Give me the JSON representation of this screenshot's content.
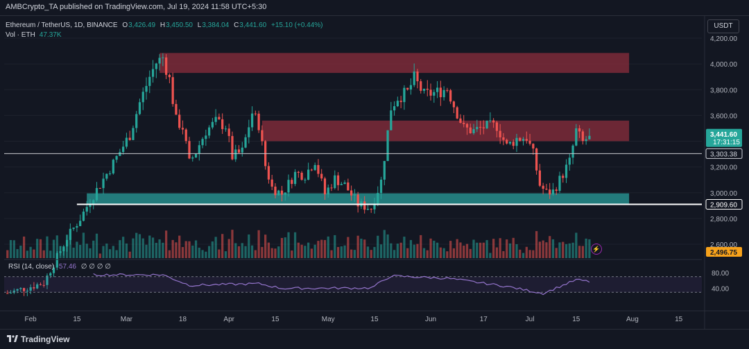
{
  "header": {
    "published": "AMBCrypto_TA published on TradingView.com, Jul 19, 2024 11:58 UTC+5:30"
  },
  "legend": {
    "symbol": "Ethereum / TetherUS, 1D, BINANCE",
    "open_label": "O",
    "open": "3,426.49",
    "high_label": "H",
    "high": "3,450.50",
    "low_label": "L",
    "low": "3,384.04",
    "close_label": "C",
    "close": "3,441.60",
    "change": "+15.10 (+0.44%)",
    "volume_label": "Vol · ETH",
    "volume": "47.37K"
  },
  "currency": "USDT",
  "price_axis": {
    "ticks": [
      "4,200.00",
      "4,000.00",
      "3,800.00",
      "3,600.00",
      "3,200.00",
      "3,000.00",
      "2,800.00",
      "2,600.00"
    ],
    "current_price": "3,441.60",
    "countdown": "17:31:15",
    "line_label_1": "3,303.38",
    "line_label_2": "2,909.60",
    "volume_label": "2,496.75"
  },
  "rsi": {
    "label": "RSI (14, close)",
    "value": "57.46",
    "zeros": "∅ ∅ ∅ ∅",
    "ticks": [
      "80.00",
      "40.00"
    ]
  },
  "time_axis": {
    "labels": [
      "Feb",
      "15",
      "Mar",
      "18",
      "Apr",
      "15",
      "May",
      "15",
      "Jun",
      "17",
      "Jul",
      "15",
      "Aug",
      "15"
    ]
  },
  "footer": {
    "brand": "TradingView"
  },
  "colors": {
    "background": "#131722",
    "up": "#26a69a",
    "down": "#ef5350",
    "resistance_zone": "#8b2e3c",
    "support_zone": "#2a9d9b",
    "rsi_line": "#9575cd"
  },
  "chart_data": {
    "type": "candlestick",
    "symbol": "Ethereum / TetherUS",
    "interval": "1D",
    "ylim": [
      2450,
      4300
    ],
    "x_range": [
      "2024-01-24",
      "2024-08-22"
    ],
    "horizontal_lines": [
      3303.38,
      2909.6
    ],
    "zones": [
      {
        "color": "resistance",
        "from": 3930,
        "to": 4085,
        "x_start": "2024-03-11",
        "x_end": "2024-07-31"
      },
      {
        "color": "resistance",
        "from": 3400,
        "to": 3560,
        "x_start": "2024-04-11",
        "x_end": "2024-07-31"
      },
      {
        "color": "support",
        "from": 2915,
        "to": 2995,
        "x_start": "2024-02-18",
        "x_end": "2024-07-31"
      }
    ],
    "closes": [
      {
        "date": "2024-01-25",
        "close": 2220
      },
      {
        "date": "2024-02-05",
        "close": 2300
      },
      {
        "date": "2024-02-12",
        "close": 2650
      },
      {
        "date": "2024-02-16",
        "close": 2800
      },
      {
        "date": "2024-02-19",
        "close": 2940
      },
      {
        "date": "2024-02-26",
        "close": 3230
      },
      {
        "date": "2024-03-02",
        "close": 3450
      },
      {
        "date": "2024-03-05",
        "close": 3700
      },
      {
        "date": "2024-03-08",
        "close": 3900
      },
      {
        "date": "2024-03-10",
        "close": 4010
      },
      {
        "date": "2024-03-12",
        "close": 4050
      },
      {
        "date": "2024-03-14",
        "close": 3880
      },
      {
        "date": "2024-03-16",
        "close": 3560
      },
      {
        "date": "2024-03-18",
        "close": 3510
      },
      {
        "date": "2024-03-20",
        "close": 3230
      },
      {
        "date": "2024-03-22",
        "close": 3320
      },
      {
        "date": "2024-03-25",
        "close": 3480
      },
      {
        "date": "2024-03-28",
        "close": 3550
      },
      {
        "date": "2024-03-31",
        "close": 3520
      },
      {
        "date": "2024-04-02",
        "close": 3280
      },
      {
        "date": "2024-04-05",
        "close": 3320
      },
      {
        "date": "2024-04-08",
        "close": 3620
      },
      {
        "date": "2024-04-10",
        "close": 3530
      },
      {
        "date": "2024-04-12",
        "close": 3210
      },
      {
        "date": "2024-04-14",
        "close": 3040
      },
      {
        "date": "2024-04-17",
        "close": 2990
      },
      {
        "date": "2024-04-21",
        "close": 3150
      },
      {
        "date": "2024-04-24",
        "close": 3140
      },
      {
        "date": "2024-04-27",
        "close": 3250
      },
      {
        "date": "2024-04-30",
        "close": 2990
      },
      {
        "date": "2024-05-03",
        "close": 3110
      },
      {
        "date": "2024-05-06",
        "close": 3060
      },
      {
        "date": "2024-05-10",
        "close": 2910
      },
      {
        "date": "2024-05-14",
        "close": 2880
      },
      {
        "date": "2024-05-17",
        "close": 3090
      },
      {
        "date": "2024-05-20",
        "close": 3660
      },
      {
        "date": "2024-05-22",
        "close": 3740
      },
      {
        "date": "2024-05-25",
        "close": 3780
      },
      {
        "date": "2024-05-27",
        "close": 3890
      },
      {
        "date": "2024-05-30",
        "close": 3760
      },
      {
        "date": "2024-06-03",
        "close": 3780
      },
      {
        "date": "2024-06-06",
        "close": 3810
      },
      {
        "date": "2024-06-08",
        "close": 3680
      },
      {
        "date": "2024-06-11",
        "close": 3500
      },
      {
        "date": "2024-06-14",
        "close": 3480
      },
      {
        "date": "2024-06-17",
        "close": 3510
      },
      {
        "date": "2024-06-21",
        "close": 3520
      },
      {
        "date": "2024-06-24",
        "close": 3360
      },
      {
        "date": "2024-06-27",
        "close": 3420
      },
      {
        "date": "2024-06-30",
        "close": 3430
      },
      {
        "date": "2024-07-02",
        "close": 3300
      },
      {
        "date": "2024-07-04",
        "close": 3060
      },
      {
        "date": "2024-07-06",
        "close": 3000
      },
      {
        "date": "2024-07-08",
        "close": 3010
      },
      {
        "date": "2024-07-10",
        "close": 3100
      },
      {
        "date": "2024-07-13",
        "close": 3240
      },
      {
        "date": "2024-07-15",
        "close": 3480
      },
      {
        "date": "2024-07-17",
        "close": 3390
      },
      {
        "date": "2024-07-19",
        "close": 3441.6
      }
    ],
    "rsi_values": [
      {
        "date": "2024-02-20",
        "rsi": 75
      },
      {
        "date": "2024-03-12",
        "rsi": 75
      },
      {
        "date": "2024-03-20",
        "rsi": 48
      },
      {
        "date": "2024-04-10",
        "rsi": 52
      },
      {
        "date": "2024-04-17",
        "rsi": 40
      },
      {
        "date": "2024-05-14",
        "rsi": 41
      },
      {
        "date": "2024-05-20",
        "rsi": 72
      },
      {
        "date": "2024-06-06",
        "rsi": 66
      },
      {
        "date": "2024-06-24",
        "rsi": 45
      },
      {
        "date": "2024-07-05",
        "rsi": 27
      },
      {
        "date": "2024-07-15",
        "rsi": 62
      },
      {
        "date": "2024-07-19",
        "rsi": 57.46
      }
    ]
  }
}
